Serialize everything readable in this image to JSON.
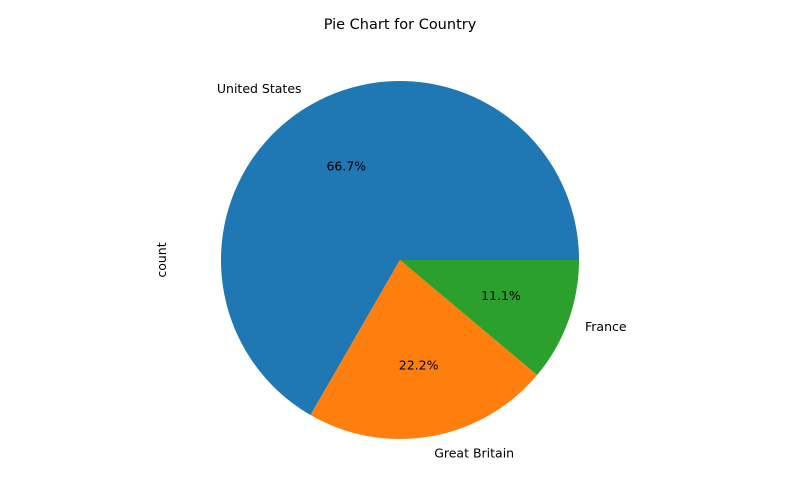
{
  "chart_data": {
    "type": "pie",
    "title": "Pie Chart for Country",
    "ylabel": "count",
    "xlabel": "",
    "categories": [
      "United States",
      "Great Britain",
      "France"
    ],
    "values": [
      6,
      2,
      1
    ],
    "percent_labels": [
      "66.7%",
      "22.2%",
      "11.1%"
    ],
    "colors": [
      "#1f77b4",
      "#ff7f0e",
      "#2ca02c"
    ],
    "start_angle_deg": 0,
    "direction": "counterclockwise"
  }
}
